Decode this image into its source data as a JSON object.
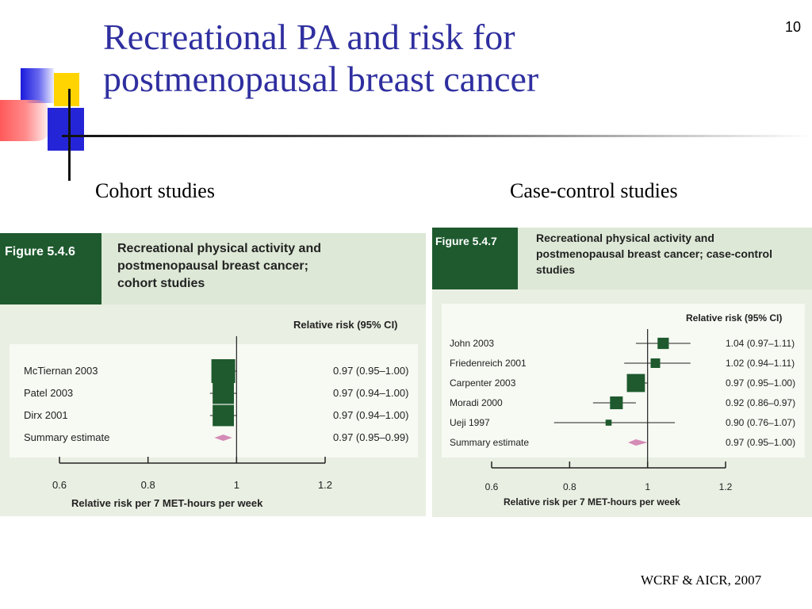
{
  "page_number": "10",
  "title": {
    "line1": "Recreational PA and risk for",
    "line2": "postmenopausal breast cancer"
  },
  "labels": {
    "cohort": "Cohort studies",
    "case_control": "Case-control studies"
  },
  "footer": "WCRF & AICR, 2007",
  "colors": {
    "title": "#2f2fa0",
    "figure_header": "#1e5a2e",
    "figure_body": "#e9efe2",
    "marker": "#1e5a2e",
    "summary": "#d48bb6"
  },
  "chart_data": [
    {
      "type": "forest",
      "figure_label": "Figure 5.4.6",
      "title_lines": [
        "Recreational physical activity and",
        "postmenopausal breast cancer;",
        "cohort studies"
      ],
      "ci_header": "Relative risk (95% CI)",
      "xlabel": "Relative risk per 7 MET-hours per week",
      "xlim": [
        0.6,
        1.2
      ],
      "ticks": [
        "0.6",
        "0.8",
        "1",
        "1.2"
      ],
      "reference_line": 1,
      "studies": [
        {
          "name": "McTiernan 2003",
          "rr": 0.97,
          "lo": 0.95,
          "hi": 1.0,
          "label": "0.97 (0.95–1.00)",
          "weight": 1.0
        },
        {
          "name": "Patel 2003",
          "rr": 0.97,
          "lo": 0.94,
          "hi": 1.0,
          "label": "0.97 (0.94–1.00)",
          "weight": 0.8
        },
        {
          "name": "Dirx 2001",
          "rr": 0.97,
          "lo": 0.94,
          "hi": 1.0,
          "label": "0.97 (0.94–1.00)",
          "weight": 0.8
        }
      ],
      "summary": {
        "name": "Summary estimate",
        "rr": 0.97,
        "lo": 0.95,
        "hi": 0.99,
        "label": "0.97 (0.95–0.99)"
      }
    },
    {
      "type": "forest",
      "figure_label": "Figure 5.4.7",
      "title_lines": [
        "Recreational physical activity and",
        "postmenopausal breast cancer; case-control",
        "studies"
      ],
      "ci_header": "Relative risk (95% CI)",
      "xlabel": "Relative risk per 7 MET-hours per week",
      "xlim": [
        0.6,
        1.2
      ],
      "ticks": [
        "0.6",
        "0.8",
        "1",
        "1.2"
      ],
      "reference_line": 1,
      "studies": [
        {
          "name": "John 2003",
          "rr": 1.04,
          "lo": 0.97,
          "hi": 1.11,
          "label": "1.04 (0.97–1.11)",
          "weight": 0.35
        },
        {
          "name": "Friedenreich 2001",
          "rr": 1.02,
          "lo": 0.94,
          "hi": 1.11,
          "label": "1.02 (0.94–1.11)",
          "weight": 0.25
        },
        {
          "name": "Carpenter 2003",
          "rr": 0.97,
          "lo": 0.95,
          "hi": 1.0,
          "label": "0.97 (0.95–1.00)",
          "weight": 0.9
        },
        {
          "name": "Moradi 2000",
          "rr": 0.92,
          "lo": 0.86,
          "hi": 0.97,
          "label": "0.92 (0.86–0.97)",
          "weight": 0.45
        },
        {
          "name": "Ueji 1997",
          "rr": 0.9,
          "lo": 0.76,
          "hi": 1.07,
          "label": "0.90 (0.76–1.07)",
          "weight": 0.1
        }
      ],
      "summary": {
        "name": "Summary estimate",
        "rr": 0.97,
        "lo": 0.95,
        "hi": 1.0,
        "label": "0.97 (0.95–1.00)"
      }
    }
  ]
}
